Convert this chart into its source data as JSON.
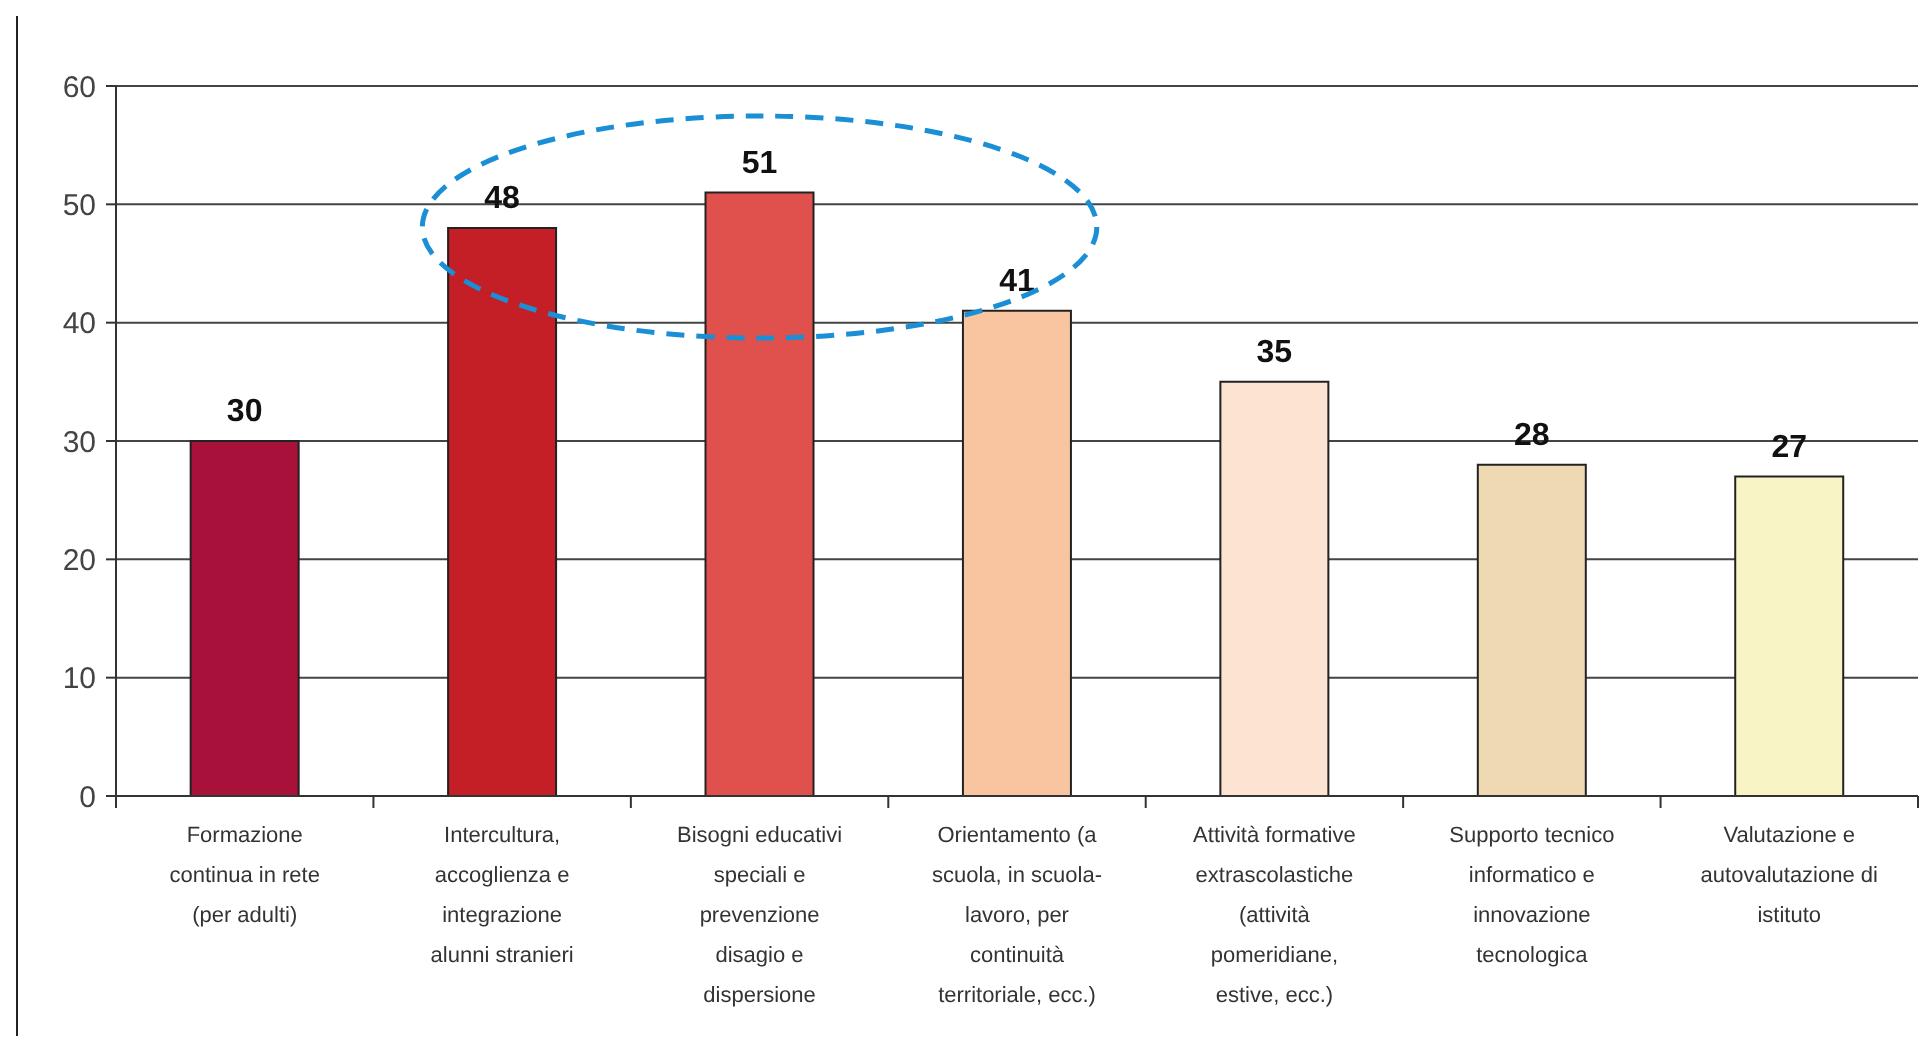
{
  "chart_data": {
    "type": "bar",
    "categories": [
      "Formazione continua in rete (per adulti)",
      "Intercultura, accoglienza e integrazione alunni stranieri",
      "Bisogni educativi speciali e prevenzione disagio e dispersione",
      "Orientamento (a scuola, in scuola-lavoro, per continuità territoriale, ecc.)",
      "Attività formative extrascolastiche (attività pomeridiane, estive, ecc.)",
      "Supporto tecnico informatico e innovazione tecnologica",
      "Valutazione e autovalutazione di istituto"
    ],
    "values": [
      30,
      48,
      51,
      41,
      35,
      28,
      27
    ],
    "colors": [
      "#a8123a",
      "#c41e26",
      "#e0514d",
      "#f9c5a0",
      "#fde3d2",
      "#eed9b2",
      "#f8f4c6"
    ],
    "ylim": [
      0,
      60
    ],
    "yticks": [
      0,
      10,
      20,
      30,
      40,
      50,
      60
    ],
    "grid": "y",
    "data_labels": true
  }
}
